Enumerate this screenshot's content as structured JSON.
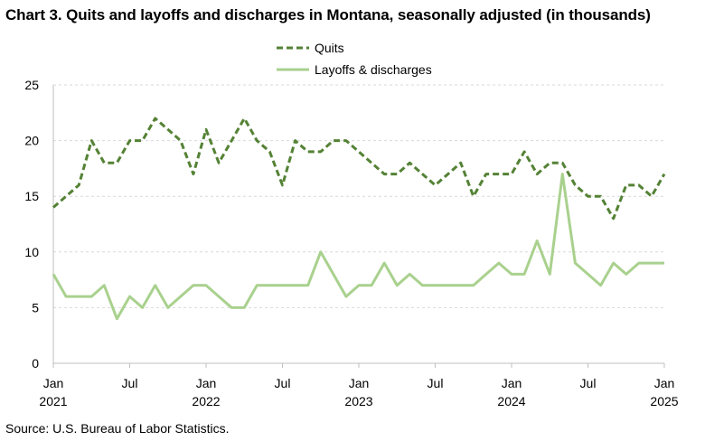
{
  "chart_data": {
    "type": "line",
    "title": "Chart 3. Quits and layoffs and discharges in Montana, seasonally adjusted (in thousands)",
    "source": "Source: U.S. Bureau of Labor Statistics.",
    "ylim": [
      0,
      25
    ],
    "yticks": [
      0,
      5,
      10,
      15,
      20,
      25
    ],
    "x_start": "2021-01",
    "x_end": "2025-01",
    "xticks": [
      {
        "month_index": 0,
        "label": "Jan",
        "year": "2021"
      },
      {
        "month_index": 6,
        "label": "Jul",
        "year": ""
      },
      {
        "month_index": 12,
        "label": "Jan",
        "year": "2022"
      },
      {
        "month_index": 18,
        "label": "Jul",
        "year": ""
      },
      {
        "month_index": 24,
        "label": "Jan",
        "year": "2023"
      },
      {
        "month_index": 30,
        "label": "Jul",
        "year": ""
      },
      {
        "month_index": 36,
        "label": "Jan",
        "year": "2024"
      },
      {
        "month_index": 42,
        "label": "Jul",
        "year": ""
      },
      {
        "month_index": 48,
        "label": "Jan",
        "year": "2025"
      }
    ],
    "grid": "horizontal",
    "legend_position": "top-center",
    "series": [
      {
        "name": "Quits",
        "style": "dashed",
        "color": "#548235",
        "values": [
          14,
          15,
          16,
          20,
          18,
          18,
          20,
          20,
          22,
          21,
          20,
          17,
          21,
          18,
          20,
          22,
          20,
          19,
          16,
          20,
          19,
          19,
          20,
          20,
          19,
          18,
          17,
          17,
          18,
          17,
          16,
          17,
          18,
          15,
          17,
          17,
          17,
          19,
          17,
          18,
          18,
          16,
          15,
          15,
          13,
          16,
          16,
          15,
          17
        ]
      },
      {
        "name": "Layoffs & discharges",
        "style": "solid",
        "color": "#a9d18e",
        "values": [
          8,
          6,
          6,
          6,
          7,
          4,
          6,
          5,
          7,
          5,
          6,
          7,
          7,
          6,
          5,
          5,
          7,
          7,
          7,
          7,
          7,
          10,
          8,
          6,
          7,
          7,
          9,
          7,
          8,
          7,
          7,
          7,
          7,
          7,
          8,
          9,
          8,
          8,
          11,
          8,
          17,
          9,
          8,
          7,
          9,
          8,
          9,
          9,
          9
        ]
      }
    ]
  }
}
